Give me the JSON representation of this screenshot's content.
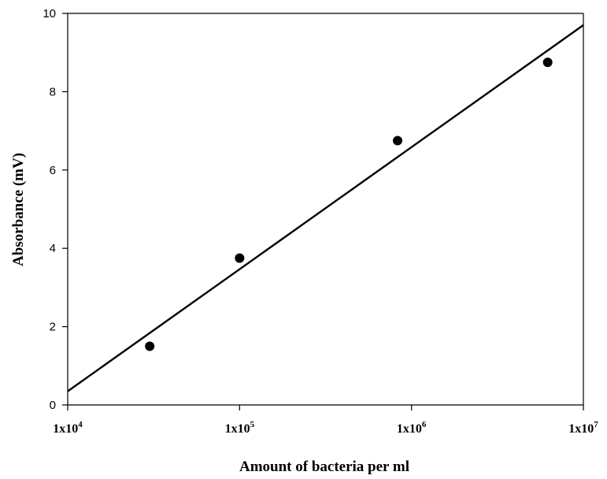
{
  "chart_data": {
    "type": "scatter",
    "title": "",
    "xlabel": "Amount of bacteria per ml",
    "ylabel": "Absorbance (mV)",
    "xscale": "log",
    "xlim": [
      10000,
      10000000
    ],
    "ylim": [
      0,
      10
    ],
    "xticks": [
      10000,
      100000,
      1000000,
      10000000
    ],
    "xtick_labels": [
      {
        "base": "1x10",
        "exp": "4"
      },
      {
        "base": "1x10",
        "exp": "5"
      },
      {
        "base": "1x10",
        "exp": "6"
      },
      {
        "base": "1x10",
        "exp": "7"
      }
    ],
    "yticks": [
      0,
      2,
      4,
      6,
      8,
      10
    ],
    "ytick_labels": [
      "0",
      "2",
      "4",
      "6",
      "8",
      "10"
    ],
    "grid": false,
    "legend": "none",
    "points": [
      {
        "x": 30000,
        "y": 1.5
      },
      {
        "x": 100000,
        "y": 3.75
      },
      {
        "x": 830000,
        "y": 6.75
      },
      {
        "x": 6200000,
        "y": 8.75
      }
    ],
    "fit_line": {
      "x": [
        10000,
        10000000
      ],
      "y": [
        0.35,
        9.7
      ]
    },
    "colors": {
      "marker": "#000000",
      "line": "#000000"
    }
  }
}
